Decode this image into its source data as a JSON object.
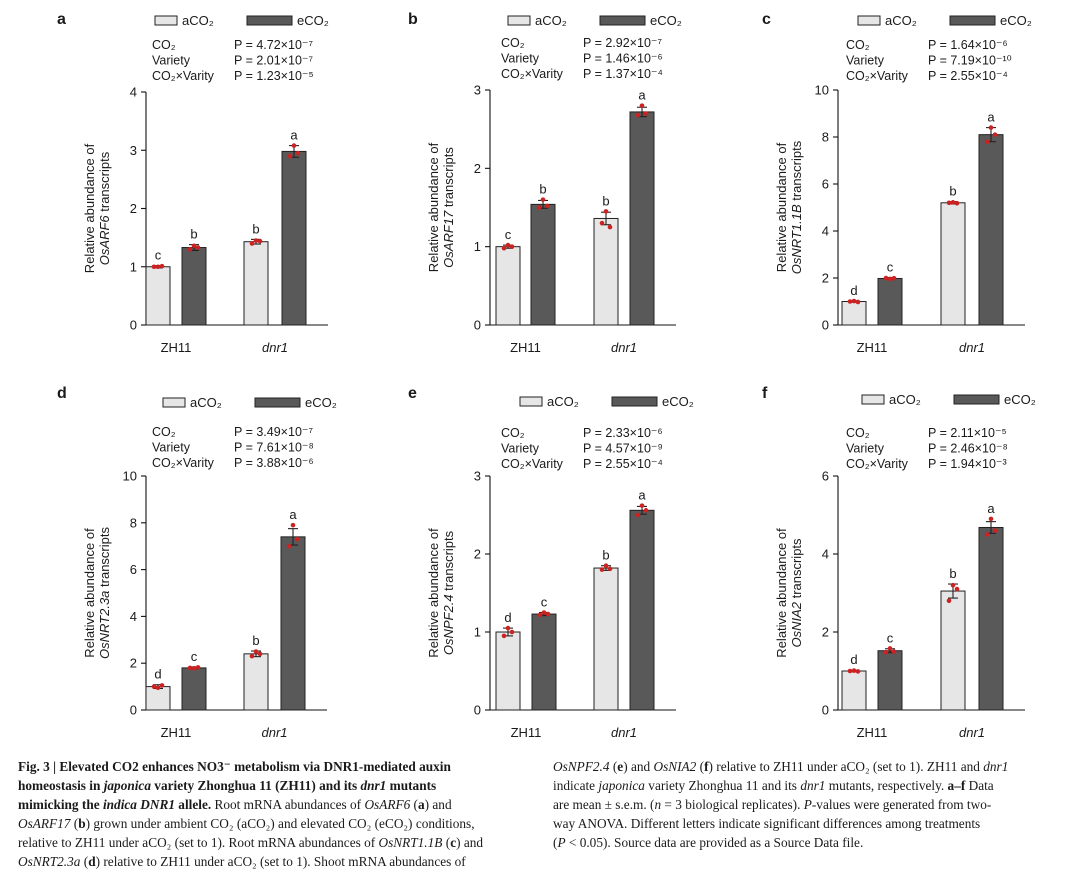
{
  "legend": {
    "a": "aCO₂",
    "e": "eCO₂",
    "a_fill": "#e6e6e6",
    "e_fill": "#595959",
    "point_color": "#cc2222"
  },
  "chart_data": [
    {
      "type": "bar",
      "panel": "a",
      "gene": "OsARF6",
      "ylabel_line1": "Relative abundance of",
      "ylabel_line2_gene": "OsARF6",
      "ylabel_line2_suffix": " transcripts",
      "categories": [
        "ZH11",
        "dnr1"
      ],
      "series": [
        {
          "name": "aCO₂",
          "values": [
            1.0,
            1.43
          ],
          "sem": [
            0.02,
            0.04
          ],
          "letters": [
            "c",
            "b"
          ],
          "points": [
            [
              1.0,
              1.0,
              1.01
            ],
            [
              1.4,
              1.45,
              1.44
            ]
          ]
        },
        {
          "name": "eCO₂",
          "values": [
            1.33,
            2.98
          ],
          "sem": [
            0.05,
            0.1
          ],
          "letters": [
            "b",
            "a"
          ],
          "points": [
            [
              1.3,
              1.36,
              1.33
            ],
            [
              2.9,
              3.08,
              2.95
            ]
          ]
        }
      ],
      "ylim": [
        0,
        4
      ],
      "yticks": [
        "0",
        "1",
        "2",
        "3",
        "4"
      ],
      "stats": [
        {
          "factor": "CO₂",
          "p": "P = 4.72×10⁻⁷"
        },
        {
          "factor": "Variety",
          "p": "P = 2.01×10⁻⁷"
        },
        {
          "factor": "CO₂×Varity",
          "p": "P = 1.23×10⁻⁵"
        }
      ]
    },
    {
      "type": "bar",
      "panel": "b",
      "gene": "OsARF17",
      "ylabel_line1": "Relative abundance of",
      "ylabel_line2_gene": "OsARF17",
      "ylabel_line2_suffix": " transcripts",
      "categories": [
        "ZH11",
        "dnr1"
      ],
      "series": [
        {
          "name": "aCO₂",
          "values": [
            1.0,
            1.36
          ],
          "sem": [
            0.02,
            0.08
          ],
          "letters": [
            "c",
            "b"
          ],
          "points": [
            [
              0.98,
              1.02,
              1.0
            ],
            [
              1.3,
              1.45,
              1.25
            ]
          ]
        },
        {
          "name": "eCO₂",
          "values": [
            1.54,
            2.72
          ],
          "sem": [
            0.05,
            0.06
          ],
          "letters": [
            "b",
            "a"
          ],
          "points": [
            [
              1.5,
              1.6,
              1.52
            ],
            [
              2.68,
              2.8,
              2.7
            ]
          ]
        }
      ],
      "ylim": [
        0,
        3
      ],
      "yticks": [
        "0",
        "1",
        "2",
        "3"
      ],
      "stats": [
        {
          "factor": "CO₂",
          "p": "P = 2.92×10⁻⁷"
        },
        {
          "factor": "Variety",
          "p": "P = 1.46×10⁻⁶"
        },
        {
          "factor": "CO₂×Varity",
          "p": "P = 1.37×10⁻⁴"
        }
      ]
    },
    {
      "type": "bar",
      "panel": "c",
      "gene": "OsNRT1.1B",
      "ylabel_line1": "Relative abundance of",
      "ylabel_line2_gene": "OsNRT1.1B",
      "ylabel_line2_suffix": " transcripts",
      "categories": [
        "ZH11",
        "dnr1"
      ],
      "series": [
        {
          "name": "aCO₂",
          "values": [
            1.0,
            5.2
          ],
          "sem": [
            0.03,
            0.05
          ],
          "letters": [
            "d",
            "b"
          ],
          "points": [
            [
              1.0,
              1.02,
              0.98
            ],
            [
              5.2,
              5.22,
              5.18
            ]
          ]
        },
        {
          "name": "eCO₂",
          "values": [
            1.98,
            8.1
          ],
          "sem": [
            0.04,
            0.3
          ],
          "letters": [
            "c",
            "a"
          ],
          "points": [
            [
              2.0,
              1.96,
              1.99
            ],
            [
              7.8,
              8.4,
              8.1
            ]
          ]
        }
      ],
      "ylim": [
        0,
        10
      ],
      "yticks": [
        "0",
        "2",
        "4",
        "6",
        "8",
        "10"
      ],
      "stats": [
        {
          "factor": "CO₂",
          "p": "P = 1.64×10⁻⁶"
        },
        {
          "factor": "Variety",
          "p": "P = 7.19×10⁻¹⁰"
        },
        {
          "factor": "CO₂×Varity",
          "p": "P = 2.55×10⁻⁴"
        }
      ]
    },
    {
      "type": "bar",
      "panel": "d",
      "gene": "OsNRT2.3a",
      "ylabel_line1": "Relative abundance of",
      "ylabel_line2_gene": "OsNRT2.3a",
      "ylabel_line2_suffix": " transcripts",
      "categories": [
        "ZH11",
        "dnr1"
      ],
      "series": [
        {
          "name": "aCO₂",
          "values": [
            1.0,
            2.4
          ],
          "sem": [
            0.08,
            0.12
          ],
          "letters": [
            "d",
            "b"
          ],
          "points": [
            [
              1.0,
              0.95,
              1.05
            ],
            [
              2.3,
              2.5,
              2.4
            ]
          ]
        },
        {
          "name": "eCO₂",
          "values": [
            1.8,
            7.4
          ],
          "sem": [
            0.04,
            0.35
          ],
          "letters": [
            "c",
            "a"
          ],
          "points": [
            [
              1.8,
              1.78,
              1.82
            ],
            [
              7.0,
              7.9,
              7.3
            ]
          ]
        }
      ],
      "ylim": [
        0,
        10
      ],
      "yticks": [
        "0",
        "2",
        "4",
        "6",
        "8",
        "10"
      ],
      "stats": [
        {
          "factor": "CO₂",
          "p": "P = 3.49×10⁻⁷"
        },
        {
          "factor": "Variety",
          "p": "P = 7.61×10⁻⁸"
        },
        {
          "factor": "CO₂×Varity",
          "p": "P = 3.88×10⁻⁶"
        }
      ]
    },
    {
      "type": "bar",
      "panel": "e",
      "gene": "OsNPF2.4",
      "ylabel_line1": "Relative abundance of",
      "ylabel_line2_gene": "OsNPF2.4",
      "ylabel_line2_suffix": " transcripts",
      "categories": [
        "ZH11",
        "dnr1"
      ],
      "series": [
        {
          "name": "aCO₂",
          "values": [
            1.0,
            1.82
          ],
          "sem": [
            0.05,
            0.03
          ],
          "letters": [
            "d",
            "b"
          ],
          "points": [
            [
              0.95,
              1.05,
              1.0
            ],
            [
              1.8,
              1.85,
              1.81
            ]
          ]
        },
        {
          "name": "eCO₂",
          "values": [
            1.23,
            2.56
          ],
          "sem": [
            0.02,
            0.05
          ],
          "letters": [
            "c",
            "a"
          ],
          "points": [
            [
              1.22,
              1.25,
              1.23
            ],
            [
              2.5,
              2.62,
              2.56
            ]
          ]
        }
      ],
      "ylim": [
        0,
        3
      ],
      "yticks": [
        "0",
        "1",
        "2",
        "3"
      ],
      "stats": [
        {
          "factor": "CO₂",
          "p": "P = 2.33×10⁻⁶"
        },
        {
          "factor": "Variety",
          "p": "P = 4.57×10⁻⁹"
        },
        {
          "factor": "CO₂×Varity",
          "p": "P = 2.55×10⁻⁴"
        }
      ]
    },
    {
      "type": "bar",
      "panel": "f",
      "gene": "OsNIA2",
      "ylabel_line1": "Relative abundance of",
      "ylabel_line2_gene": "OsNIA2",
      "ylabel_line2_suffix": " transcripts",
      "categories": [
        "ZH11",
        "dnr1"
      ],
      "series": [
        {
          "name": "aCO₂",
          "values": [
            1.0,
            3.05
          ],
          "sem": [
            0.02,
            0.18
          ],
          "letters": [
            "d",
            "b"
          ],
          "points": [
            [
              1.0,
              1.01,
              0.99
            ],
            [
              2.8,
              3.2,
              3.1
            ]
          ]
        },
        {
          "name": "eCO₂",
          "values": [
            1.52,
            4.68
          ],
          "sem": [
            0.05,
            0.15
          ],
          "letters": [
            "c",
            "a"
          ],
          "points": [
            [
              1.48,
              1.58,
              1.5
            ],
            [
              4.5,
              4.9,
              4.6
            ]
          ]
        }
      ],
      "ylim": [
        0,
        6
      ],
      "yticks": [
        "0",
        "2",
        "4",
        "6"
      ],
      "stats": [
        {
          "factor": "CO₂",
          "p": "P = 2.11×10⁻⁵"
        },
        {
          "factor": "Variety",
          "p": "P = 2.46×10⁻⁸"
        },
        {
          "factor": "CO₂×Varity",
          "p": "P = 1.94×10⁻³"
        }
      ]
    }
  ],
  "caption": {
    "left": [
      [
        {
          "t": "Fig. 3 | Elevated CO",
          "b": 1
        },
        {
          "t": "2",
          "b": 1
        },
        {
          "t": " enhances NO",
          "b": 1
        },
        {
          "t": "3",
          "b": 1
        },
        {
          "t": "⁻",
          "b": 1
        },
        {
          "t": " metabolism via DNR1-mediated auxin",
          "b": 1
        }
      ],
      [
        {
          "t": "homeostasis in ",
          "b": 1
        },
        {
          "t": "japonica",
          "b": 1,
          "i": 1
        },
        {
          "t": " variety Zhonghua 11 (ZH11) and its ",
          "b": 1
        },
        {
          "t": "dnr1",
          "b": 1,
          "i": 1
        },
        {
          "t": " mutants",
          "b": 1
        }
      ],
      [
        {
          "t": "mimicking the ",
          "b": 1
        },
        {
          "t": "indica DNR1",
          "b": 1,
          "i": 1
        },
        {
          "t": " allele.",
          "b": 1
        },
        {
          "t": " Root mRNA abundances of "
        },
        {
          "t": "OsARF6",
          "i": 1
        },
        {
          "t": " ("
        },
        {
          "t": "a",
          "b": 1
        },
        {
          "t": ") and"
        }
      ],
      [
        {
          "t": "OsARF17",
          "i": 1
        },
        {
          "t": " ("
        },
        {
          "t": "b",
          "b": 1
        },
        {
          "t": ") grown under ambient CO₂ (aCO₂) and elevated CO₂ (eCO₂) conditions,"
        }
      ],
      [
        {
          "t": "relative to ZH11 under aCO₂ (set to 1). Root mRNA abundances of "
        },
        {
          "t": "OsNRT1.1B",
          "i": 1
        },
        {
          "t": " ("
        },
        {
          "t": "c",
          "b": 1
        },
        {
          "t": ") and"
        }
      ],
      [
        {
          "t": "OsNRT2.3a",
          "i": 1
        },
        {
          "t": " ("
        },
        {
          "t": "d",
          "b": 1
        },
        {
          "t": ") relative to ZH11 under aCO₂ (set to 1). Shoot mRNA abundances of"
        }
      ]
    ],
    "right": [
      [
        {
          "t": "OsNPF2.4",
          "i": 1
        },
        {
          "t": " ("
        },
        {
          "t": "e",
          "b": 1
        },
        {
          "t": ") and "
        },
        {
          "t": "OsNIA2",
          "i": 1
        },
        {
          "t": " ("
        },
        {
          "t": "f",
          "b": 1
        },
        {
          "t": ") relative to ZH11 under aCO₂ (set to 1). ZH11 and "
        },
        {
          "t": "dnr1",
          "i": 1
        }
      ],
      [
        {
          "t": "indicate "
        },
        {
          "t": "japonica",
          "i": 1
        },
        {
          "t": " variety Zhonghua 11 and its "
        },
        {
          "t": "dnr1",
          "i": 1
        },
        {
          "t": " mutants, respectively. "
        },
        {
          "t": "a–f",
          "b": 1
        },
        {
          "t": " Data"
        }
      ],
      [
        {
          "t": "are mean ± s.e.m. ("
        },
        {
          "t": "n",
          "i": 1
        },
        {
          "t": " = 3 biological replicates). "
        },
        {
          "t": "P",
          "i": 1
        },
        {
          "t": "-values were generated from two-"
        }
      ],
      [
        {
          "t": "way ANOVA. Different letters indicate significant differences among treatments"
        }
      ],
      [
        {
          "t": "("
        },
        {
          "t": "P",
          "i": 1
        },
        {
          "t": " < 0.05). Source data are provided as a Source Data file."
        }
      ]
    ]
  }
}
